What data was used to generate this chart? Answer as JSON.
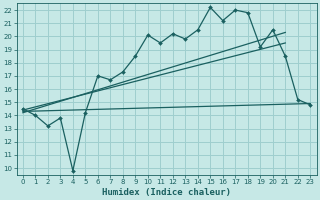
{
  "xlabel": "Humidex (Indice chaleur)",
  "bg_color": "#c6e8e6",
  "grid_color": "#9ecece",
  "line_color": "#1a6060",
  "xlim": [
    -0.5,
    23.5
  ],
  "ylim": [
    9.5,
    22.5
  ],
  "xticks": [
    0,
    1,
    2,
    3,
    4,
    5,
    6,
    7,
    8,
    9,
    10,
    11,
    12,
    13,
    14,
    15,
    16,
    17,
    18,
    19,
    20,
    21,
    22,
    23
  ],
  "yticks": [
    10,
    11,
    12,
    13,
    14,
    15,
    16,
    17,
    18,
    19,
    20,
    21,
    22
  ],
  "jagged_x": [
    0,
    1,
    2,
    3,
    4,
    5,
    6,
    7,
    8,
    9,
    10,
    11,
    12,
    13,
    14,
    15,
    16,
    17,
    18,
    19,
    20,
    21,
    22,
    23
  ],
  "jagged_y": [
    14.5,
    14.0,
    13.2,
    13.8,
    9.8,
    14.2,
    17.0,
    16.7,
    17.3,
    18.5,
    20.1,
    19.5,
    20.2,
    19.8,
    20.5,
    22.2,
    21.2,
    22.0,
    21.8,
    19.2,
    20.5,
    18.5,
    15.2,
    14.8
  ],
  "line1_x": [
    0,
    21
  ],
  "line1_y": [
    14.4,
    19.5
  ],
  "line2_x": [
    0,
    21
  ],
  "line2_y": [
    14.2,
    20.3
  ],
  "flat_line_x": [
    0,
    23
  ],
  "flat_line_y": [
    14.3,
    14.9
  ],
  "xlabel_fontsize": 6.5,
  "tick_fontsize": 5.0
}
